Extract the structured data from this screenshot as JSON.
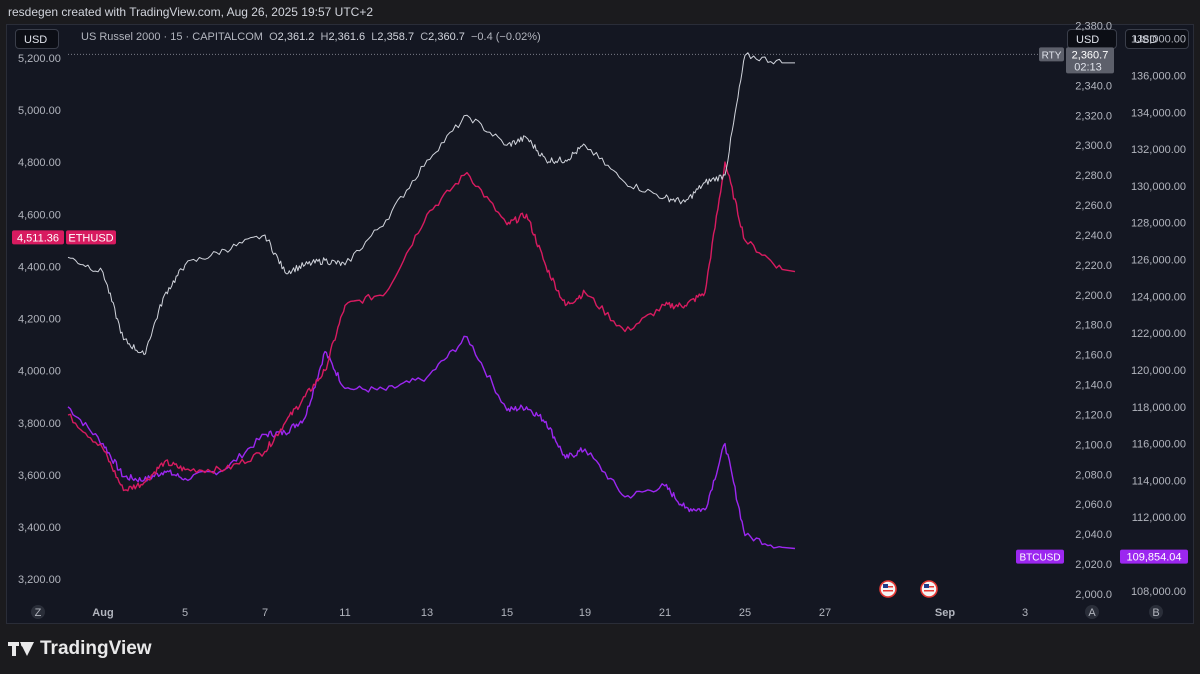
{
  "header": {
    "caption": "resdegen created with TradingView.com, Aug 26, 2025 19:57 UTC+2"
  },
  "legend": {
    "symbol": "US Russel 2000 · 15 · CAPITALCOM",
    "o_label": "O",
    "o_value": "2,361.2",
    "h_label": "H",
    "h_value": "2,361.6",
    "l_label": "L",
    "l_value": "2,358.7",
    "c_label": "C",
    "c_value": "2,360.7",
    "change": "−0.4 (−0.02%)"
  },
  "currency_buttons": {
    "left": "USD",
    "right1": "USD",
    "right2": "USD"
  },
  "brand": {
    "name": "TradingView"
  },
  "colors": {
    "background": "#141722",
    "rty": "#d1d4dc",
    "eth": "#d81b60",
    "btc": "#9c27f0"
  },
  "chart_data": {
    "type": "line",
    "x_ticks": [
      "Aug",
      "5",
      "7",
      "11",
      "13",
      "15",
      "19",
      "21",
      "25",
      "27",
      "Sep",
      "3"
    ],
    "axis_corner_labels": {
      "left": "Z",
      "right_a": "A",
      "right_b": "B"
    },
    "left_axis": {
      "ticks": [
        "5,200.00",
        "5,000.00",
        "4,800.00",
        "4,600.00",
        "4,400.00",
        "4,200.00",
        "4,000.00",
        "3,800.00",
        "3,600.00",
        "3,400.00",
        "3,200.00"
      ],
      "range": [
        3120,
        5330
      ]
    },
    "rty_axis": {
      "ticks": [
        "2,380.0",
        "2,360.0",
        "2,340.0",
        "2,320.0",
        "2,300.0",
        "2,280.0",
        "2,260.0",
        "2,240.0",
        "2,220.0",
        "2,200.0",
        "2,180.0",
        "2,160.0",
        "2,140.0",
        "2,120.0",
        "2,100.0",
        "2,080.0",
        "2,060.0",
        "2,040.0",
        "2,020.0",
        "2,000.0"
      ],
      "range": [
        1996,
        2381
      ]
    },
    "btc_axis": {
      "ticks": [
        "138,000.00",
        "136,000.00",
        "134,000.00",
        "132,000.00",
        "130,000.00",
        "128,000.00",
        "126,000.00",
        "124,000.00",
        "122,000.00",
        "120,000.00",
        "118,000.00",
        "116,000.00",
        "114,000.00",
        "112,000.00",
        "110,000.00",
        "108,000.00"
      ],
      "range": [
        107500,
        138800
      ]
    },
    "series": [
      {
        "name": "RTY",
        "axis": "rty",
        "last_label": "RTY",
        "last_value": "2,360.7",
        "countdown": "02:13",
        "x": [
          "Jul 31",
          "Aug 1",
          "Aug 2",
          "Aug 3",
          "Aug 4",
          "Aug 5",
          "Aug 6",
          "Aug 7",
          "Aug 8",
          "Aug 9",
          "Aug 10",
          "Aug 11",
          "Aug 12",
          "Aug 13",
          "Aug 14",
          "Aug 15",
          "Aug 16",
          "Aug 17",
          "Aug 18",
          "Aug 19",
          "Aug 20",
          "Aug 21",
          "Aug 22",
          "Aug 23",
          "Aug 24",
          "Aug 25",
          "Aug 26"
        ],
        "y": [
          2225,
          2215,
          2170,
          2160,
          2200,
          2220,
          2230,
          2240,
          2215,
          2220,
          2223,
          2220,
          2250,
          2290,
          2320,
          2300,
          2305,
          2290,
          2290,
          2300,
          2275,
          2265,
          2262,
          2275,
          2280,
          2360,
          2355
        ]
      },
      {
        "name": "ETHUSD",
        "axis": "left",
        "last_label": "ETHUSD",
        "last_value": "4,511.36",
        "x": [
          "Jul 31",
          "Aug 1",
          "Aug 2",
          "Aug 3",
          "Aug 4",
          "Aug 5",
          "Aug 6",
          "Aug 7",
          "Aug 8",
          "Aug 9",
          "Aug 10",
          "Aug 11",
          "Aug 12",
          "Aug 13",
          "Aug 14",
          "Aug 15",
          "Aug 16",
          "Aug 17",
          "Aug 18",
          "Aug 19",
          "Aug 20",
          "Aug 21",
          "Aug 22",
          "Aug 23",
          "Aug 24",
          "Aug 25",
          "Aug 26"
        ],
        "y": [
          3830,
          3700,
          3540,
          3570,
          3650,
          3620,
          3620,
          3690,
          3800,
          3900,
          4000,
          4250,
          4300,
          4600,
          4760,
          4560,
          4600,
          4400,
          4250,
          4300,
          4150,
          4250,
          4250,
          4300,
          4800,
          4500,
          4380
        ]
      },
      {
        "name": "BTCUSD",
        "axis": "btc",
        "last_label": "BTCUSD",
        "last_value": "109,854.04",
        "x": [
          "Jul 31",
          "Aug 1",
          "Aug 2",
          "Aug 3",
          "Aug 4",
          "Aug 5",
          "Aug 6",
          "Aug 7",
          "Aug 8",
          "Aug 9",
          "Aug 10",
          "Aug 11",
          "Aug 12",
          "Aug 13",
          "Aug 14",
          "Aug 15",
          "Aug 16",
          "Aug 17",
          "Aug 18",
          "Aug 19",
          "Aug 20",
          "Aug 21",
          "Aug 22",
          "Aug 23",
          "Aug 24",
          "Aug 25",
          "Aug 26"
        ],
        "y": [
          118000,
          116000,
          114200,
          114000,
          114500,
          114100,
          114600,
          116500,
          116600,
          117400,
          121000,
          119000,
          118900,
          119600,
          121800,
          117800,
          118000,
          117200,
          115200,
          115700,
          113100,
          113700,
          112500,
          112400,
          116000,
          111000,
          110300
        ]
      }
    ],
    "event_icons": [
      "us-flag-icon",
      "us-flag-icon"
    ]
  }
}
